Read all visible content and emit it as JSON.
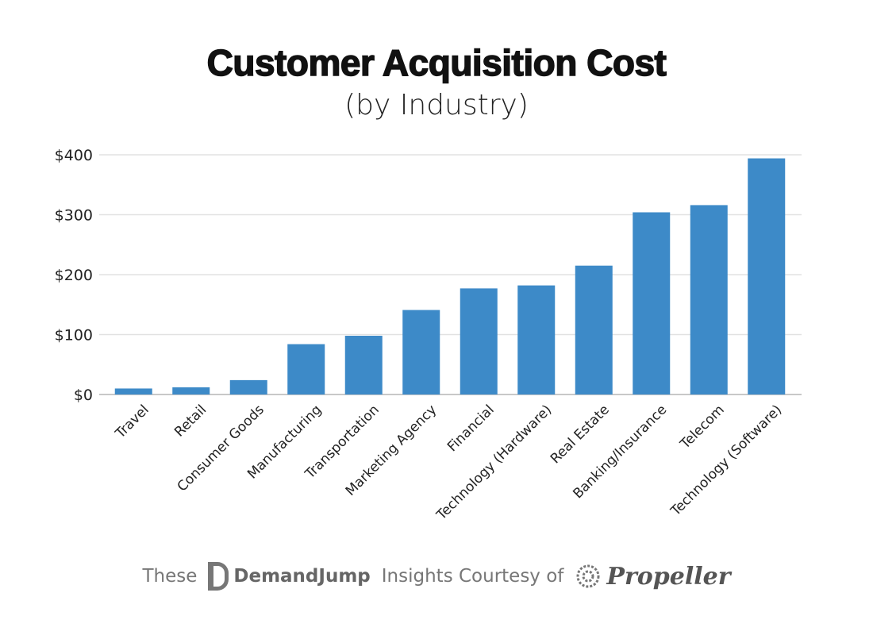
{
  "chart_data": {
    "type": "bar",
    "title": "Customer Acquisition Cost",
    "subtitle": "(by Industry)",
    "xlabel": "",
    "ylabel": "",
    "categories": [
      "Travel",
      "Retail",
      "Consumer Goods",
      "Manufacturing",
      "Transportation",
      "Marketing Agency",
      "Financial",
      "Technology (Hardware)",
      "Real Estate",
      "Banking/Insurance",
      "Telecom",
      "Technology (Software)"
    ],
    "values": [
      10,
      12,
      24,
      84,
      98,
      141,
      177,
      182,
      215,
      304,
      316,
      394
    ],
    "ylim": [
      0,
      400
    ],
    "yticks": [
      0,
      100,
      200,
      300,
      400
    ],
    "ytick_labels": [
      "$0",
      "$100",
      "$200",
      "$300",
      "$400"
    ],
    "grid": true,
    "bar_color": "#3d8ac8"
  },
  "footer": {
    "prefix": "These",
    "brand1": "DemandJump",
    "middle": "Insights Courtesy of",
    "brand2": "Propeller"
  }
}
